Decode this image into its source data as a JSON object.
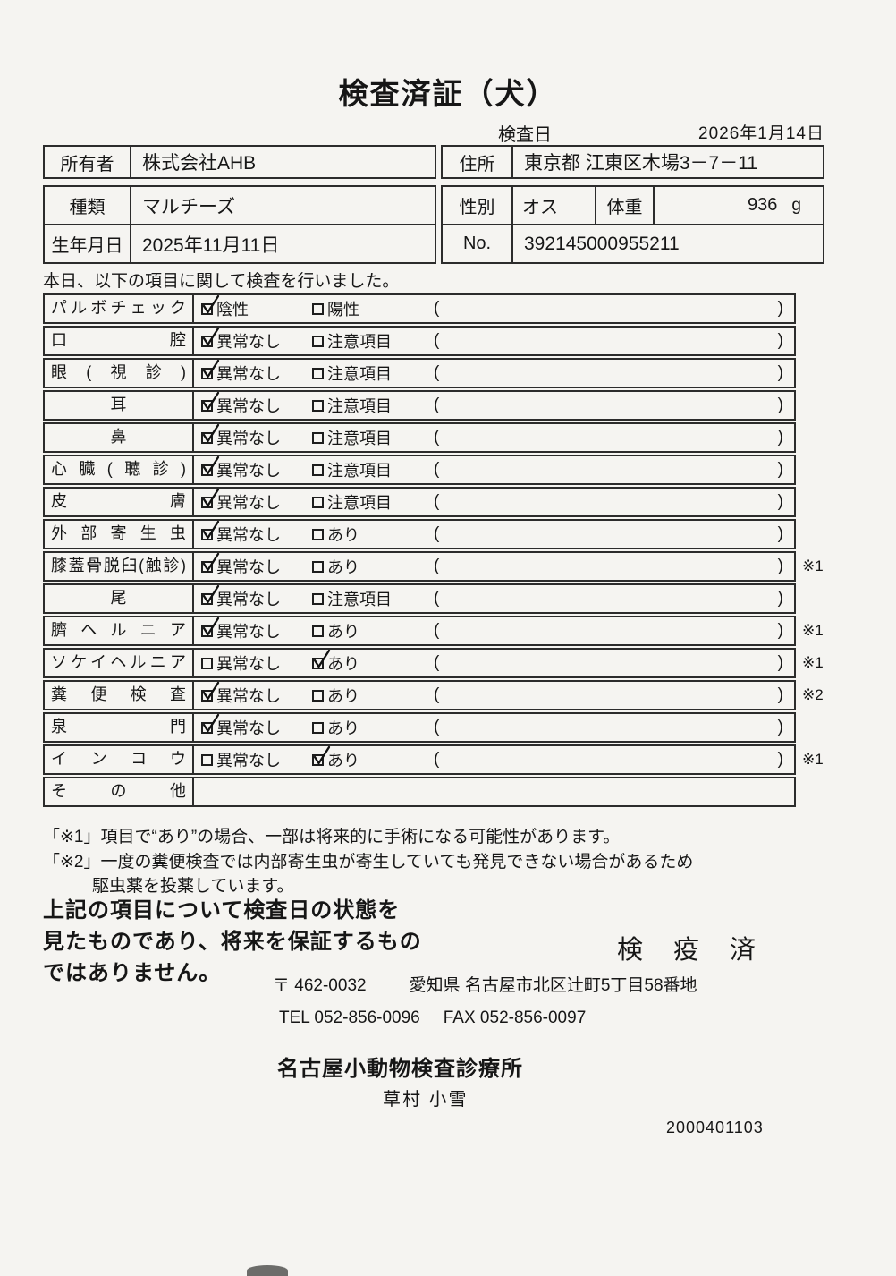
{
  "colors": {
    "paper": "#f5f4f1",
    "ink": "#161616",
    "border": "#2c2c2c"
  },
  "page": {
    "title": "検査済証（犬）",
    "inspection_date_label": "検査日",
    "inspection_date": "2026年1月14日"
  },
  "owner": {
    "label": "所有者",
    "value": "株式会社AHB",
    "address_label": "住所",
    "address": "東京都 江東区木場3－7－11"
  },
  "animal": {
    "breed_label": "種類",
    "breed": "マルチーズ",
    "sex_label": "性別",
    "sex": "オス",
    "weight_label": "体重",
    "weight": "936",
    "weight_unit": "g",
    "birth_label": "生年月日",
    "birth": "2025年11月11日",
    "no_label": "No.",
    "no": "392145000955211"
  },
  "intro": "本日、以下の項目に関して検査を行いました。",
  "symbols": {
    "paren_open": "(",
    "paren_close": ")"
  },
  "checklist": {
    "rows": [
      {
        "label": "パルボチェック",
        "opt1": "陰性",
        "opt1_checked": true,
        "opt2": "陽性",
        "opt2_checked": false,
        "paren": true,
        "note": ""
      },
      {
        "label": "口腔",
        "opt1": "異常なし",
        "opt1_checked": true,
        "opt2": "注意項目",
        "opt2_checked": false,
        "paren": true,
        "note": ""
      },
      {
        "label": "眼(視診)",
        "opt1": "異常なし",
        "opt1_checked": true,
        "opt2": "注意項目",
        "opt2_checked": false,
        "paren": true,
        "note": ""
      },
      {
        "label": "耳",
        "opt1": "異常なし",
        "opt1_checked": true,
        "opt2": "注意項目",
        "opt2_checked": false,
        "paren": true,
        "note": ""
      },
      {
        "label": "鼻",
        "opt1": "異常なし",
        "opt1_checked": true,
        "opt2": "注意項目",
        "opt2_checked": false,
        "paren": true,
        "note": ""
      },
      {
        "label": "心臓(聴診)",
        "opt1": "異常なし",
        "opt1_checked": true,
        "opt2": "注意項目",
        "opt2_checked": false,
        "paren": true,
        "note": ""
      },
      {
        "label": "皮膚",
        "opt1": "異常なし",
        "opt1_checked": true,
        "opt2": "注意項目",
        "opt2_checked": false,
        "paren": true,
        "note": ""
      },
      {
        "label": "外部寄生虫",
        "opt1": "異常なし",
        "opt1_checked": true,
        "opt2": "あり",
        "opt2_checked": false,
        "paren": true,
        "note": ""
      },
      {
        "label": "膝蓋骨脱臼(触診)",
        "opt1": "異常なし",
        "opt1_checked": true,
        "opt2": "あり",
        "opt2_checked": false,
        "paren": true,
        "note": "※1"
      },
      {
        "label": "尾",
        "opt1": "異常なし",
        "opt1_checked": true,
        "opt2": "注意項目",
        "opt2_checked": false,
        "paren": true,
        "note": ""
      },
      {
        "label": "臍ヘルニア",
        "opt1": "異常なし",
        "opt1_checked": true,
        "opt2": "あり",
        "opt2_checked": false,
        "paren": true,
        "note": "※1"
      },
      {
        "label": "ソケイヘルニア",
        "opt1": "異常なし",
        "opt1_checked": false,
        "opt2": "あり",
        "opt2_checked": true,
        "paren": true,
        "note": "※1"
      },
      {
        "label": "糞便検査",
        "opt1": "異常なし",
        "opt1_checked": true,
        "opt2": "あり",
        "opt2_checked": false,
        "paren": true,
        "note": "※2"
      },
      {
        "label": "泉門",
        "opt1": "異常なし",
        "opt1_checked": true,
        "opt2": "あり",
        "opt2_checked": false,
        "paren": true,
        "note": ""
      },
      {
        "label": "インコウ",
        "opt1": "異常なし",
        "opt1_checked": false,
        "opt2": "あり",
        "opt2_checked": true,
        "paren": true,
        "note": "※1"
      },
      {
        "label": "その他",
        "opt1": "",
        "opt1_checked": false,
        "opt2": "",
        "opt2_checked": false,
        "paren": false,
        "note": ""
      }
    ]
  },
  "footnotes": {
    "line1": "「※1」項目で“あり”の場合、一部は将来的に手術になる可能性があります。",
    "line2": "「※2」一度の糞便検査では内部寄生虫が寄生していても発見できない場合があるため",
    "line3": "駆虫薬を投薬しています。"
  },
  "disclaimer": {
    "line1": "上記の項目について検査日の状態を",
    "line2": "見たものであり、将来を保証するもの",
    "line3": "ではありません。"
  },
  "stamp": "検 疫 済",
  "clinic": {
    "postal": "〒 462-0032",
    "address": "愛知県 名古屋市北区辻町5丁目58番地",
    "tel": "TEL 052-856-0096",
    "fax": "FAX 052-856-0097",
    "name": "名古屋小動物検査診療所",
    "vet": "草村 小雪",
    "code": "2000401103"
  }
}
